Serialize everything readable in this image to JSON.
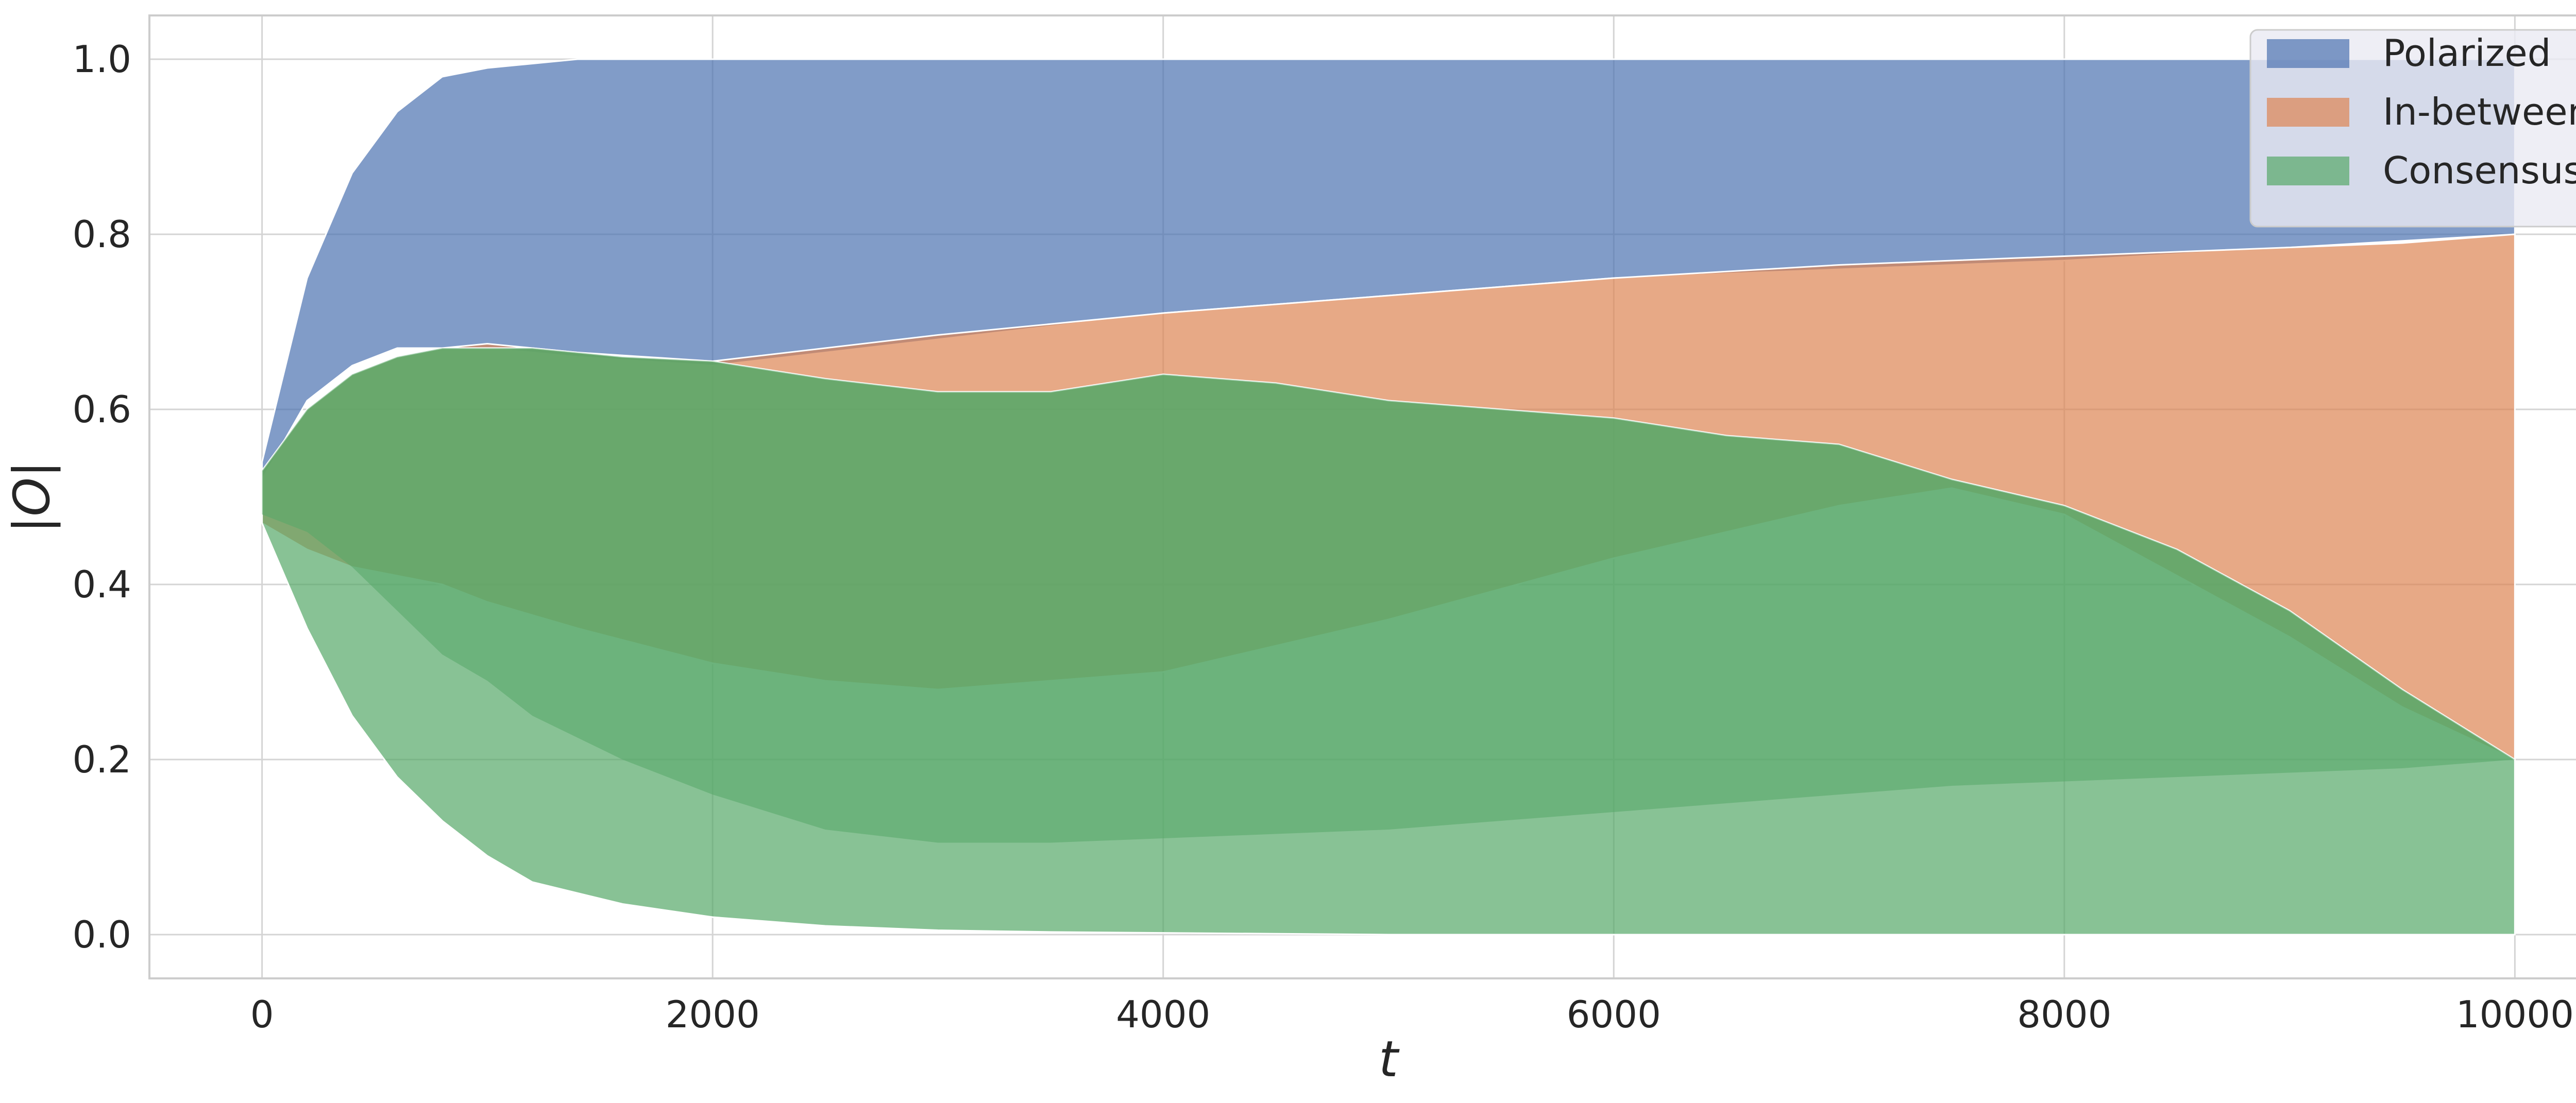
{
  "chart_data": {
    "type": "area",
    "title": "",
    "xlabel": "t",
    "ylabel": "|O|",
    "xlim": [
      -500,
      10500
    ],
    "ylim": [
      -0.05,
      1.05
    ],
    "xticks": [
      0,
      2000,
      4000,
      6000,
      8000,
      10000
    ],
    "xtick_labels": [
      "0",
      "2000",
      "4000",
      "6000",
      "8000",
      "10000"
    ],
    "yticks": [
      0.0,
      0.2,
      0.4,
      0.6,
      0.8,
      1.0
    ],
    "ytick_labels": [
      "0.0",
      "0.2",
      "0.4",
      "0.6",
      "0.8",
      "1.0"
    ],
    "grid": true,
    "legend_position": "top-right",
    "series": [
      {
        "name": "Polarized",
        "color": "#4c72b0",
        "x": [
          0,
          200,
          400,
          600,
          800,
          1000,
          1400,
          2000,
          3000,
          4000,
          5000,
          6000,
          7000,
          8000,
          9000,
          10000
        ],
        "upper": [
          0.54,
          0.75,
          0.87,
          0.94,
          0.98,
          0.99,
          1.0,
          1.0,
          1.0,
          1.0,
          1.0,
          1.0,
          1.0,
          1.0,
          1.0,
          1.0
        ],
        "lower": [
          0.52,
          0.61,
          0.65,
          0.67,
          0.67,
          0.67,
          0.66,
          0.65,
          0.68,
          0.71,
          0.73,
          0.75,
          0.76,
          0.77,
          0.785,
          0.8
        ]
      },
      {
        "name": "In-between",
        "color": "#dd8452",
        "x": [
          0,
          200,
          400,
          600,
          800,
          1000,
          1400,
          2000,
          2500,
          3000,
          4000,
          5000,
          6000,
          7000,
          7500,
          8000,
          8500,
          9000,
          9500,
          10000
        ],
        "upper": [
          0.53,
          0.6,
          0.64,
          0.66,
          0.67,
          0.675,
          0.665,
          0.655,
          0.67,
          0.685,
          0.71,
          0.73,
          0.75,
          0.765,
          0.77,
          0.775,
          0.78,
          0.785,
          0.79,
          0.8
        ],
        "lower": [
          0.47,
          0.44,
          0.42,
          0.41,
          0.4,
          0.38,
          0.35,
          0.31,
          0.29,
          0.28,
          0.3,
          0.36,
          0.43,
          0.49,
          0.51,
          0.48,
          0.41,
          0.34,
          0.26,
          0.2
        ]
      },
      {
        "name": "Consensus",
        "color": "#55a868",
        "x": [
          0,
          200,
          400,
          600,
          800,
          1000,
          1200,
          1600,
          2000,
          2500,
          3000,
          3500,
          4000,
          4500,
          5000,
          5500,
          6000,
          6500,
          7000,
          7500,
          8000,
          8500,
          9000,
          9500,
          10000
        ],
        "upper": [
          0.53,
          0.6,
          0.64,
          0.66,
          0.67,
          0.67,
          0.67,
          0.66,
          0.655,
          0.635,
          0.62,
          0.62,
          0.64,
          0.63,
          0.61,
          0.6,
          0.59,
          0.57,
          0.56,
          0.52,
          0.49,
          0.44,
          0.37,
          0.28,
          0.2
        ],
        "upper_inner": [
          0.48,
          0.46,
          0.42,
          0.37,
          0.32,
          0.29,
          0.25,
          0.2,
          0.16,
          0.12,
          0.105,
          0.105,
          0.11,
          0.115,
          0.12,
          0.13,
          0.14,
          0.15,
          0.16,
          0.17,
          0.175,
          0.18,
          0.185,
          0.19,
          0.2
        ],
        "lower": [
          0.47,
          0.35,
          0.25,
          0.18,
          0.13,
          0.09,
          0.06,
          0.035,
          0.02,
          0.01,
          0.005,
          0.003,
          0.002,
          0.001,
          0.0,
          0.0,
          0.0,
          0.0,
          0.0,
          0.0,
          0.0,
          0.0,
          0.0,
          0.0,
          0.0
        ]
      }
    ]
  }
}
